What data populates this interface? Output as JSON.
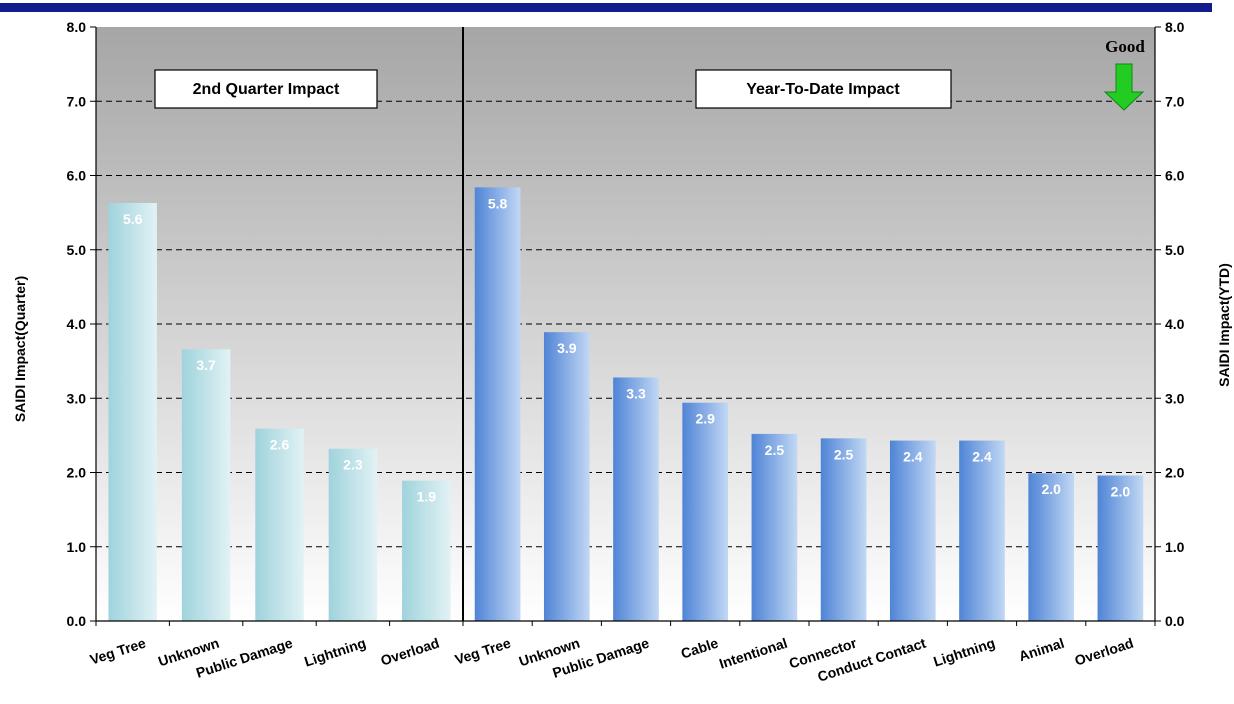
{
  "colors": {
    "top_rule": "#111d8c",
    "plot_top": "#a6a6a6",
    "plot_bottom": "#ffffff",
    "quarter_bar_dark": "#9fd3dc",
    "quarter_bar_light": "#e2f2f5",
    "ytd_bar_dark": "#4f84d6",
    "ytd_bar_light": "#c2d8f4",
    "good_arrow": "#22cc22"
  },
  "chart_data": [
    {
      "type": "bar",
      "title": "2nd Quarter Impact",
      "ylabel": "SAIDI Impact(Quarter)",
      "ylim": [
        0,
        8
      ],
      "yticks": [
        "0.0",
        "1.0",
        "2.0",
        "3.0",
        "4.0",
        "5.0",
        "6.0",
        "7.0",
        "8.0"
      ],
      "grid": true,
      "categories": [
        "Veg Tree",
        "Unknown",
        "Public Damage",
        "Lightning",
        "Overload"
      ],
      "values": [
        5.63,
        3.66,
        2.59,
        2.32,
        1.89
      ],
      "data_labels": [
        "5.6",
        "3.7",
        "2.6",
        "2.3",
        "1.9"
      ]
    },
    {
      "type": "bar",
      "title": "Year-To-Date Impact",
      "ylabel": "SAIDI Impact(YTD)",
      "ylim": [
        0,
        8
      ],
      "yticks": [
        "0.0",
        "1.0",
        "2.0",
        "3.0",
        "4.0",
        "5.0",
        "6.0",
        "7.0",
        "8.0"
      ],
      "grid": true,
      "annotation": "Good",
      "categories": [
        "Veg Tree",
        "Unknown",
        "Public Damage",
        "Cable",
        "Intentional",
        "Connector",
        "Conduct Contact",
        "Lightning",
        "Animal",
        "Overload"
      ],
      "values": [
        5.84,
        3.89,
        3.28,
        2.94,
        2.52,
        2.46,
        2.43,
        2.43,
        1.99,
        1.96
      ],
      "data_labels": [
        "5.8",
        "3.9",
        "3.3",
        "2.9",
        "2.5",
        "2.5",
        "2.4",
        "2.4",
        "2.0",
        "2.0"
      ]
    }
  ]
}
